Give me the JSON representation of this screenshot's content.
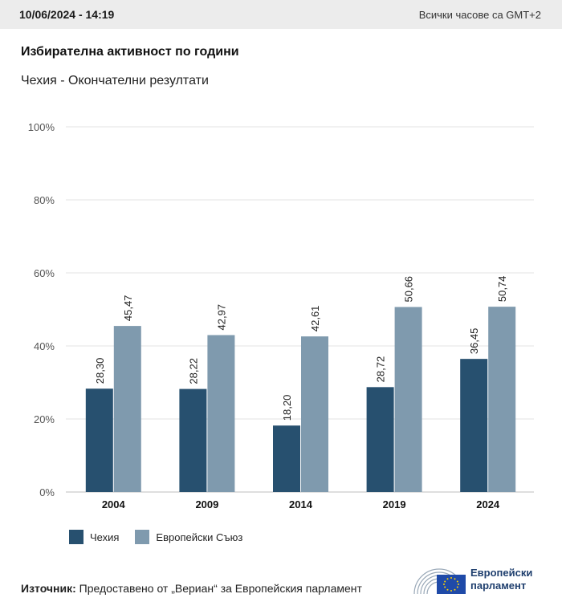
{
  "header": {
    "datetime": "10/06/2024 - 14:19",
    "timezone_note": "Всички часове са GMT+2"
  },
  "title": "Избирателна активност по години",
  "subtitle": "Чехия - Окончателни резултати",
  "chart_data": {
    "type": "bar",
    "categories": [
      "2004",
      "2009",
      "2014",
      "2019",
      "2024"
    ],
    "series": [
      {
        "name": "Чехия",
        "color": "#27506f",
        "values": [
          28.3,
          28.22,
          18.2,
          28.72,
          36.45
        ],
        "labels": [
          "28,30",
          "28,22",
          "18,20",
          "28,72",
          "36,45"
        ]
      },
      {
        "name": "Европейски Съюз",
        "color": "#7f9aae",
        "values": [
          45.47,
          42.97,
          42.61,
          50.66,
          50.74
        ],
        "labels": [
          "45,47",
          "42,97",
          "42,61",
          "50,66",
          "50,74"
        ]
      }
    ],
    "ylim": [
      0,
      100
    ],
    "yticks": [
      0,
      20,
      40,
      60,
      80,
      100
    ],
    "ytick_labels": [
      "0%",
      "20%",
      "40%",
      "60%",
      "80%",
      "100%"
    ],
    "grid": true,
    "legend_position": "bottom-left"
  },
  "legend": {
    "items": [
      {
        "label": "Чехия",
        "color": "#27506f"
      },
      {
        "label": "Европейски Съюз",
        "color": "#7f9aae"
      }
    ]
  },
  "footer": {
    "source_label": "Източник:",
    "source_text": " Предоставено от „Вериан“ за Европейския парламент",
    "logo_line1": "Европейски",
    "logo_line2": "парламент"
  }
}
